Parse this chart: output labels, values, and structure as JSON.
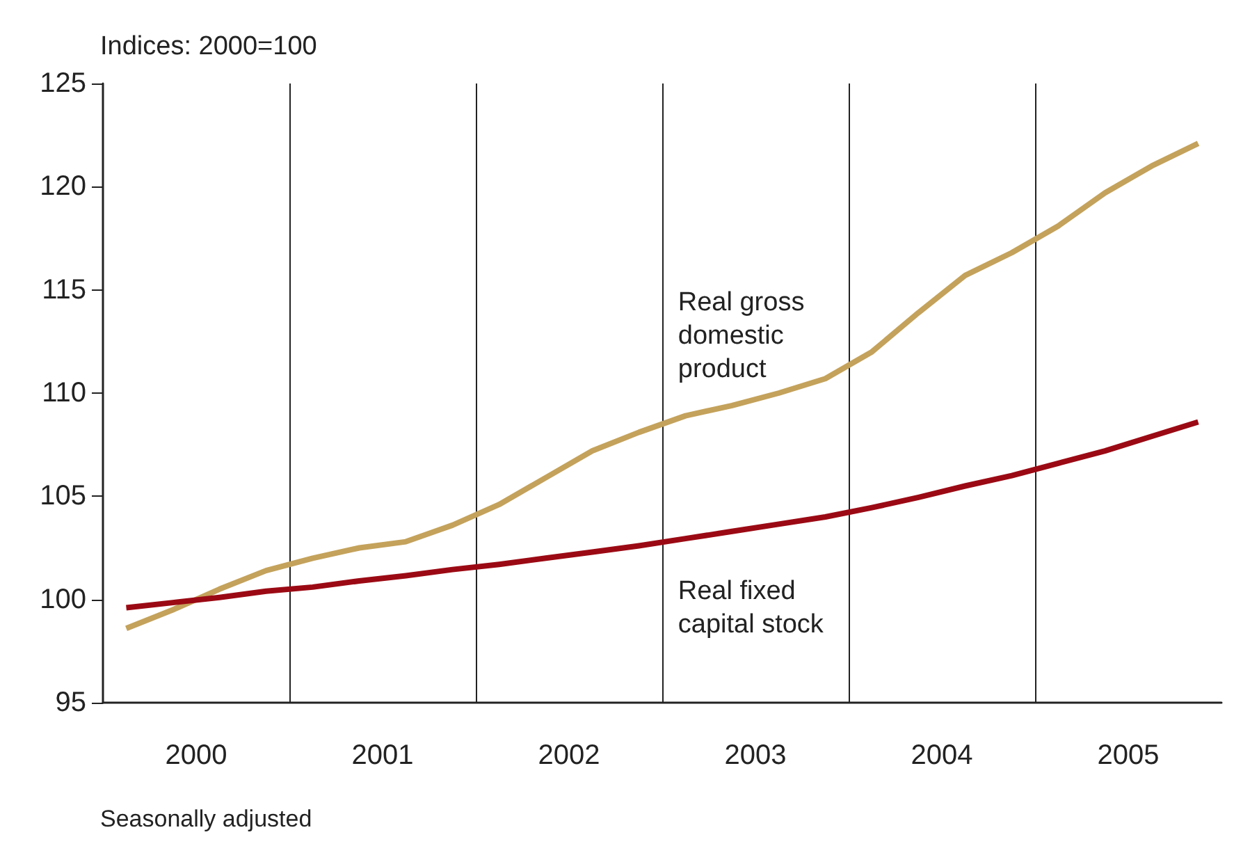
{
  "chart_data": {
    "type": "line",
    "ylabel": "Indices: 2000=100",
    "annotations": [
      "Seasonally adjusted"
    ],
    "x": [
      2000.125,
      2000.375,
      2000.625,
      2000.875,
      2001.125,
      2001.375,
      2001.625,
      2001.875,
      2002.125,
      2002.375,
      2002.625,
      2002.875,
      2003.125,
      2003.375,
      2003.625,
      2003.875,
      2004.125,
      2004.375,
      2004.625,
      2004.875,
      2005.125,
      2005.375,
      2005.625,
      2005.875
    ],
    "series": [
      {
        "name": "Real gross domestic product",
        "color": "#c4a25b",
        "values": [
          98.6,
          99.5,
          100.5,
          101.4,
          102.0,
          102.5,
          102.8,
          103.6,
          104.6,
          105.9,
          107.2,
          108.1,
          108.9,
          109.4,
          110.0,
          110.7,
          112.0,
          113.9,
          115.7,
          116.8,
          118.1,
          119.7,
          121.0,
          122.1
        ]
      },
      {
        "name": "Real fixed capital stock",
        "color": "#9b0a14",
        "values": [
          99.6,
          99.85,
          100.1,
          100.4,
          100.6,
          100.9,
          101.15,
          101.45,
          101.7,
          102.0,
          102.3,
          102.6,
          102.95,
          103.3,
          103.65,
          104.0,
          104.45,
          104.95,
          105.5,
          106.0,
          106.6,
          107.2,
          107.9,
          108.6
        ]
      }
    ],
    "xlim": [
      2000,
      2006
    ],
    "xticks": [
      {
        "value": 2000.5,
        "label": "2000"
      },
      {
        "value": 2001,
        "label": null
      },
      {
        "value": 2001.5,
        "label": "2001"
      },
      {
        "value": 2002,
        "label": null
      },
      {
        "value": 2002.5,
        "label": "2002"
      },
      {
        "value": 2003,
        "label": null
      },
      {
        "value": 2003.5,
        "label": "2003"
      },
      {
        "value": 2004,
        "label": null
      },
      {
        "value": 2004.5,
        "label": "2004"
      },
      {
        "value": 2005,
        "label": null
      },
      {
        "value": 2005.5,
        "label": "2005"
      }
    ],
    "ylim": [
      95,
      125
    ],
    "yticks": [
      95,
      100,
      105,
      110,
      115,
      120,
      125
    ],
    "grid": "x",
    "legend": false
  }
}
